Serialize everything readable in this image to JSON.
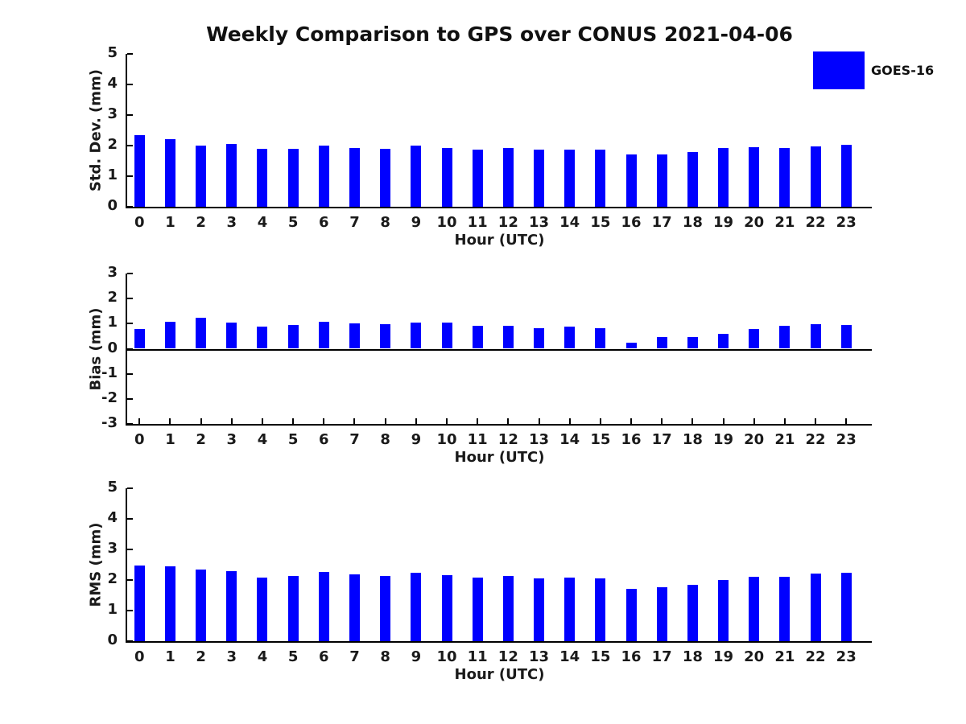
{
  "title": "Weekly Comparison to GPS over CONUS 2021-04-06",
  "legend": {
    "label": "GOES-16",
    "swatch_color": "#0000ff",
    "position": "upper right outside"
  },
  "colors": {
    "bar": "#0000ff",
    "axis": "#000000",
    "text": "#1a1a1a",
    "background": "#ffffff"
  },
  "chart_data": [
    {
      "type": "bar",
      "panel": "std-dev",
      "ylabel": "Std. Dev. (mm)",
      "xlabel": "Hour (UTC)",
      "ylim": [
        0,
        5
      ],
      "yticks": [
        0,
        1,
        2,
        3,
        4,
        5
      ],
      "grid": false,
      "categories": [
        "0",
        "1",
        "2",
        "3",
        "4",
        "5",
        "6",
        "7",
        "8",
        "9",
        "10",
        "11",
        "12",
        "13",
        "14",
        "15",
        "16",
        "17",
        "18",
        "19",
        "20",
        "21",
        "22",
        "23"
      ],
      "series": [
        {
          "name": "GOES-16",
          "values": [
            2.35,
            2.2,
            2.0,
            2.04,
            1.9,
            1.9,
            1.99,
            1.93,
            1.9,
            1.99,
            1.91,
            1.88,
            1.92,
            1.88,
            1.88,
            1.87,
            1.72,
            1.7,
            1.8,
            1.92,
            1.96,
            1.93,
            1.97,
            2.03
          ]
        }
      ]
    },
    {
      "type": "bar",
      "panel": "bias",
      "ylabel": "Bias (mm)",
      "xlabel": "Hour (UTC)",
      "ylim": [
        -3,
        3
      ],
      "yticks": [
        -3,
        -2,
        -1,
        0,
        1,
        2,
        3
      ],
      "grid": false,
      "categories": [
        "0",
        "1",
        "2",
        "3",
        "4",
        "5",
        "6",
        "7",
        "8",
        "9",
        "10",
        "11",
        "12",
        "13",
        "14",
        "15",
        "16",
        "17",
        "18",
        "19",
        "20",
        "21",
        "22",
        "23"
      ],
      "series": [
        {
          "name": "GOES-16",
          "values": [
            0.8,
            1.07,
            1.25,
            1.05,
            0.87,
            0.95,
            1.07,
            1.0,
            0.98,
            1.05,
            1.04,
            0.9,
            0.92,
            0.82,
            0.88,
            0.83,
            0.25,
            0.45,
            0.48,
            0.6,
            0.78,
            0.9,
            0.97,
            0.94
          ]
        }
      ]
    },
    {
      "type": "bar",
      "panel": "rms",
      "ylabel": "RMS (mm)",
      "xlabel": "Hour (UTC)",
      "ylim": [
        0,
        5
      ],
      "yticks": [
        0,
        1,
        2,
        3,
        4,
        5
      ],
      "grid": false,
      "categories": [
        "0",
        "1",
        "2",
        "3",
        "4",
        "5",
        "6",
        "7",
        "8",
        "9",
        "10",
        "11",
        "12",
        "13",
        "14",
        "15",
        "16",
        "17",
        "18",
        "19",
        "20",
        "21",
        "22",
        "23"
      ],
      "series": [
        {
          "name": "GOES-16",
          "values": [
            2.47,
            2.44,
            2.34,
            2.28,
            2.08,
            2.13,
            2.26,
            2.18,
            2.13,
            2.23,
            2.16,
            2.08,
            2.13,
            2.05,
            2.08,
            2.05,
            1.71,
            1.76,
            1.84,
            2.0,
            2.1,
            2.1,
            2.2,
            2.23
          ]
        }
      ]
    }
  ]
}
